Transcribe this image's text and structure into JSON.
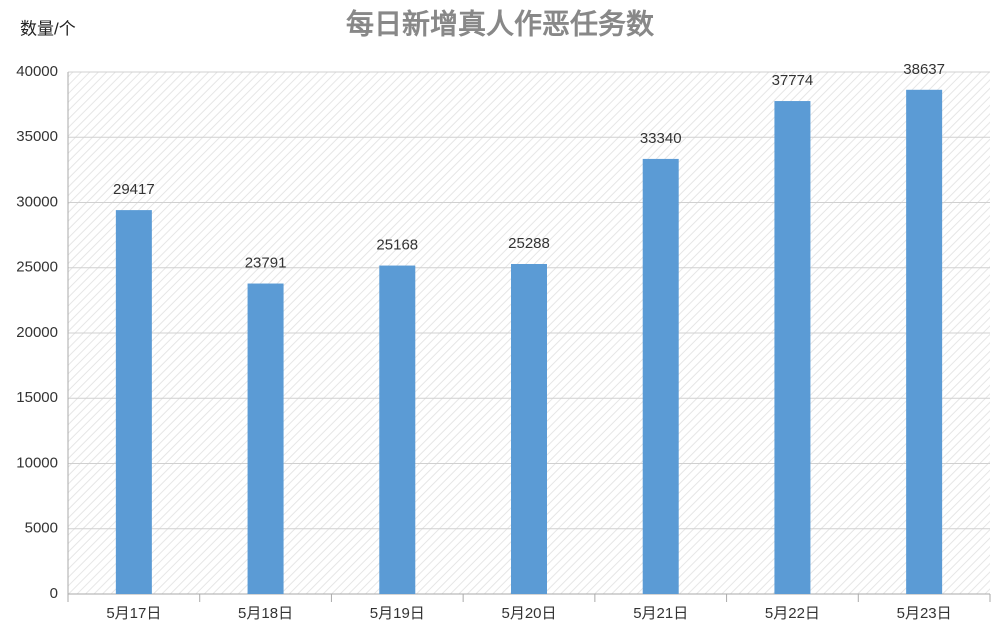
{
  "chart_data": {
    "type": "bar",
    "title": "每日新增真人作恶任务数",
    "y_label": "数量/个",
    "categories": [
      "5月17日",
      "5月18日",
      "5月19日",
      "5月20日",
      "5月21日",
      "5月22日",
      "5月23日"
    ],
    "values": [
      29417,
      23791,
      25168,
      25288,
      33340,
      37774,
      38637
    ],
    "color": "#5b9bd5",
    "ylim": [
      0,
      40000
    ],
    "yticks": [
      0,
      5000,
      10000,
      15000,
      20000,
      25000,
      30000,
      35000,
      40000
    ],
    "grid": true
  }
}
